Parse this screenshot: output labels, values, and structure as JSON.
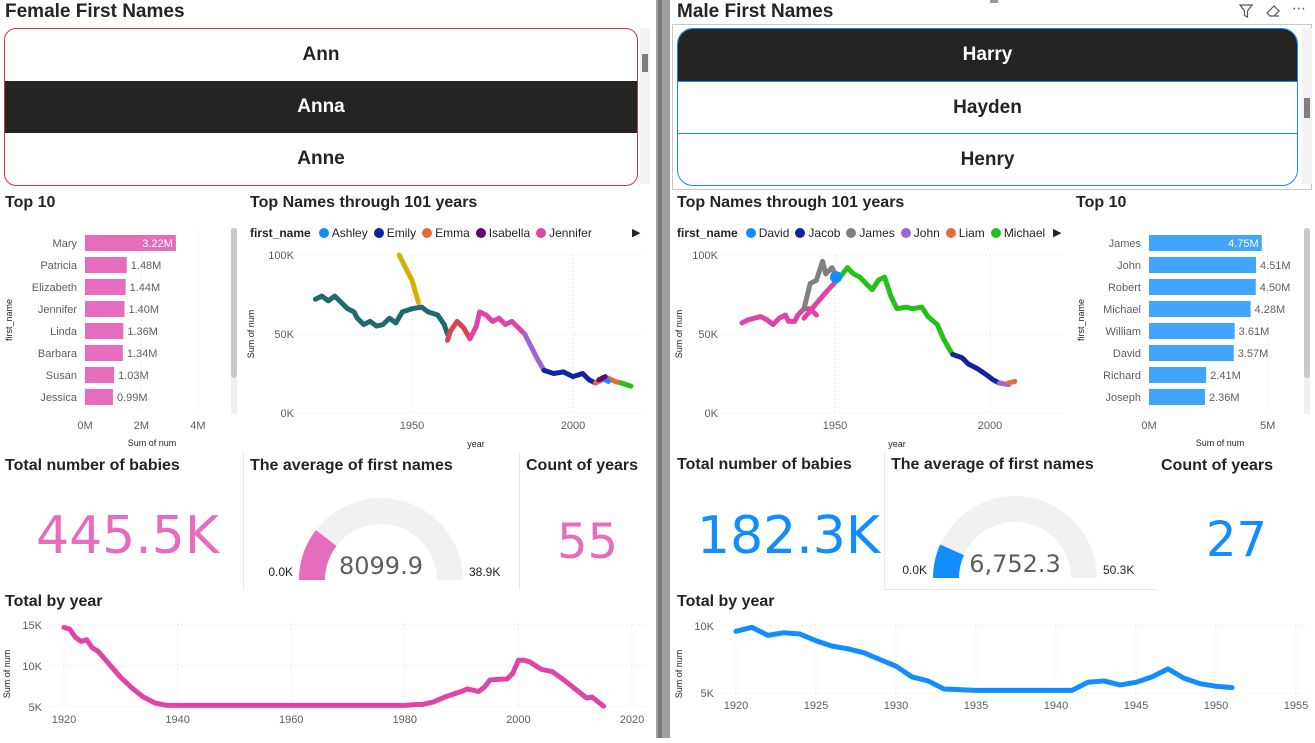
{
  "left": {
    "slicer_title": "Female First Names",
    "slicer_items": [
      {
        "label": "Ann",
        "selected": false
      },
      {
        "label": "Anna",
        "selected": true
      },
      {
        "label": "Anne",
        "selected": false
      }
    ],
    "top10": {
      "title": "Top 10",
      "ylabel": "first_name",
      "xlabel": "Sum of num",
      "ticks": [
        "0M",
        "2M",
        "4M"
      ],
      "bars": [
        {
          "name": "Mary",
          "value": 3.22,
          "label": "3.22M"
        },
        {
          "name": "Patricia",
          "value": 1.48,
          "label": "1.48M"
        },
        {
          "name": "Elizabeth",
          "value": 1.44,
          "label": "1.44M"
        },
        {
          "name": "Jennifer",
          "value": 1.4,
          "label": "1.40M"
        },
        {
          "name": "Linda",
          "value": 1.36,
          "label": "1.36M"
        },
        {
          "name": "Barbara",
          "value": 1.34,
          "label": "1.34M"
        },
        {
          "name": "Susan",
          "value": 1.03,
          "label": "1.03M"
        },
        {
          "name": "Jessica",
          "value": 0.99,
          "label": "0.99M"
        }
      ],
      "xmax": 4.5,
      "color": "#e66cbe"
    },
    "trend": {
      "title": "Top Names through 101 years",
      "legend_title": "first_name",
      "legend": [
        {
          "name": "Ashley",
          "color": "#118dff"
        },
        {
          "name": "Emily",
          "color": "#12239e"
        },
        {
          "name": "Emma",
          "color": "#e66c37"
        },
        {
          "name": "Isabella",
          "color": "#6b007b"
        },
        {
          "name": "Jennifer",
          "color": "#e044a7"
        }
      ],
      "yticks": [
        "100K",
        "50K",
        "0K"
      ],
      "xticks": [
        "1950",
        "2000"
      ],
      "ylabel": "Sum of num",
      "xlabel": "year"
    },
    "total_babies": {
      "title": "Total number of babies",
      "value": "445.5K",
      "color": "#e66cbe"
    },
    "average": {
      "title": "The average of first names",
      "value": "8099.9",
      "min": "0.0K",
      "max": "38.9K",
      "fraction": 0.208,
      "color": "#e66cbe"
    },
    "count_years": {
      "title": "Count of years",
      "value": "55",
      "color": "#e66cbe"
    },
    "total_by_year": {
      "title": "Total by year",
      "ylabel": "Sum of num",
      "yticks": [
        "15K",
        "10K",
        "5K"
      ],
      "xticks": [
        "1920",
        "1940",
        "1960",
        "1980",
        "2000",
        "2020"
      ],
      "color": "#e044a7",
      "x": [
        1920,
        1921,
        1922,
        1923,
        1924,
        1925,
        1926,
        1928,
        1930,
        1932,
        1934,
        1936,
        1938,
        1945,
        1950,
        1960,
        1970,
        1975,
        1980,
        1982,
        1983,
        1985,
        1987,
        1990,
        1991,
        1993,
        1994,
        1995,
        1997,
        1998,
        1999,
        2000,
        2001,
        2002,
        2004,
        2006,
        2008,
        2010,
        2012,
        2013,
        2015
      ],
      "y": [
        14700,
        14500,
        13500,
        13000,
        13200,
        12200,
        11800,
        10200,
        8600,
        7300,
        6200,
        5500,
        5200,
        5200,
        5200,
        5200,
        5200,
        5200,
        5200,
        5300,
        5300,
        5600,
        6200,
        6900,
        7200,
        6900,
        7400,
        8300,
        8400,
        8400,
        9100,
        10700,
        10700,
        10500,
        9600,
        9300,
        8300,
        7200,
        6100,
        6200,
        5100
      ]
    }
  },
  "right": {
    "slicer_title": "Male First Names",
    "slicer_items": [
      {
        "label": "Harry",
        "selected": true
      },
      {
        "label": "Hayden",
        "selected": false
      },
      {
        "label": "Henry",
        "selected": false
      }
    ],
    "top10": {
      "title": "Top 10",
      "ylabel": "first_name",
      "xlabel": "Sum of num",
      "ticks": [
        "0M",
        "5M"
      ],
      "bars": [
        {
          "name": "James",
          "value": 4.75,
          "label": "4.75M"
        },
        {
          "name": "John",
          "value": 4.51,
          "label": "4.51M"
        },
        {
          "name": "Robert",
          "value": 4.5,
          "label": "4.50M"
        },
        {
          "name": "Michael",
          "value": 4.28,
          "label": "4.28M"
        },
        {
          "name": "William",
          "value": 3.61,
          "label": "3.61M"
        },
        {
          "name": "David",
          "value": 3.57,
          "label": "3.57M"
        },
        {
          "name": "Richard",
          "value": 2.41,
          "label": "2.41M"
        },
        {
          "name": "Joseph",
          "value": 2.36,
          "label": "2.36M"
        }
      ],
      "xmax": 5.9,
      "color": "#41a4ff"
    },
    "trend": {
      "title": "Top Names through 101 years",
      "legend_title": "first_name",
      "legend": [
        {
          "name": "David",
          "color": "#118dff"
        },
        {
          "name": "Jacob",
          "color": "#12239e"
        },
        {
          "name": "James",
          "color": "#808080"
        },
        {
          "name": "John",
          "color": "#9b67d3"
        },
        {
          "name": "Liam",
          "color": "#e66c37"
        },
        {
          "name": "Michael",
          "color": "#23c21a"
        }
      ],
      "yticks": [
        "100K",
        "50K",
        "0K"
      ],
      "xticks": [
        "1950",
        "2000"
      ],
      "ylabel": "Sum of num",
      "xlabel": "year"
    },
    "total_babies": {
      "title": "Total number of babies",
      "value": "182.3K",
      "color": "#118dff"
    },
    "average": {
      "title": "The average of first names",
      "value": "6,752.3",
      "min": "0.0K",
      "max": "50.3K",
      "fraction": 0.134,
      "color": "#118dff"
    },
    "count_years": {
      "title": "Count of years",
      "value": "27",
      "color": "#118dff"
    },
    "total_by_year": {
      "title": "Total by year",
      "ylabel": "Sum of num",
      "yticks": [
        "10K",
        "5K"
      ],
      "xticks": [
        "1920",
        "1925",
        "1930",
        "1935",
        "1940",
        "1945",
        "1950",
        "1955"
      ],
      "color": "#118dff",
      "x": [
        1920,
        1921,
        1922,
        1923,
        1924,
        1925,
        1926,
        1927,
        1928,
        1929,
        1930,
        1931,
        1932,
        1933,
        1935,
        1937,
        1940,
        1941,
        1942,
        1943,
        1944,
        1945,
        1946,
        1947,
        1948,
        1949,
        1950,
        1951
      ],
      "y": [
        9600,
        9900,
        9300,
        9500,
        9400,
        8900,
        8500,
        8300,
        8000,
        7500,
        7000,
        6200,
        5900,
        5300,
        5200,
        5200,
        5200,
        5200,
        5800,
        5900,
        5600,
        5800,
        6200,
        6800,
        6100,
        5700,
        5500,
        5400
      ]
    }
  }
}
